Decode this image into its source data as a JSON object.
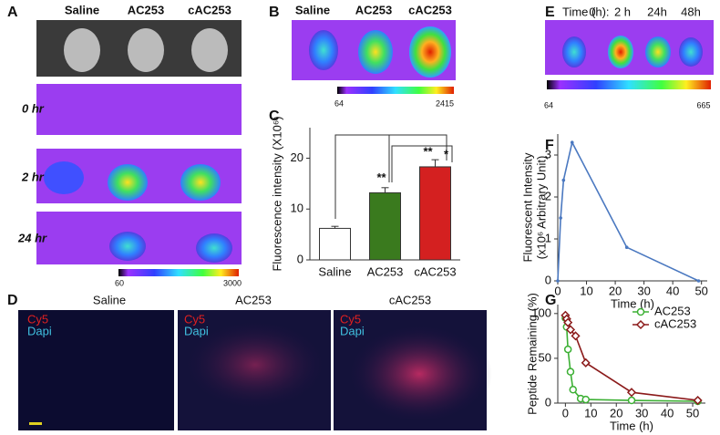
{
  "panels": {
    "A": {
      "label": "A",
      "columns": [
        "Saline",
        "AC253",
        "cAC253"
      ],
      "rows": [
        "0 hr",
        "2 hr",
        "24 hr"
      ],
      "colorbar": [
        "60",
        "3000"
      ]
    },
    "B": {
      "label": "B",
      "columns": [
        "Saline",
        "AC253",
        "cAC253"
      ],
      "colorbar": [
        "64",
        "2415"
      ]
    },
    "E": {
      "label": "E",
      "time_label": "Time (h):",
      "columns": [
        "0",
        "2 h",
        "24h",
        "48h"
      ],
      "colorbar": [
        "64",
        "665"
      ]
    },
    "D": {
      "label": "D",
      "columns": [
        "Saline",
        "AC253",
        "cAC253"
      ],
      "channels": [
        "Cy5",
        "Dapi"
      ]
    }
  },
  "chart_data": [
    {
      "type": "bar",
      "panel_label": "C",
      "ylabel": "Fluorescence intensity (X10⁶)",
      "categories": [
        "Saline",
        "AC253",
        "cAC253"
      ],
      "values": [
        6.2,
        13.2,
        18.3
      ],
      "errors": [
        0.4,
        1.0,
        1.4
      ],
      "colors": [
        "#ffffff",
        "#3a7a1e",
        "#d42020"
      ],
      "ylim": [
        0,
        26
      ],
      "yticks": [
        0,
        10,
        20
      ],
      "annotations": [
        "**",
        "**",
        "*"
      ]
    },
    {
      "type": "line",
      "panel_label": "F",
      "xlabel": "Time (h)",
      "ylabel": [
        "Fluorescent Intensity",
        "(x10⁶ Arbitrary Unit)"
      ],
      "series": [
        {
          "color": "#4a78c0",
          "marker": "dot",
          "x": [
            0,
            1,
            2,
            5,
            24,
            49
          ],
          "values": [
            0,
            1.5,
            2.4,
            3.3,
            0.8,
            0
          ]
        }
      ],
      "xlim": [
        0,
        52
      ],
      "xticks": [
        0,
        10,
        20,
        30,
        40,
        50
      ],
      "ylim": [
        0,
        3.5
      ],
      "yticks": [
        0,
        1,
        2,
        3
      ]
    },
    {
      "type": "line",
      "panel_label": "G",
      "xlabel": "Time (h)",
      "ylabel": "Peptide Remaining (%)",
      "legend": "upper right",
      "series": [
        {
          "name": "AC253",
          "color": "#3cb034",
          "marker": "circle",
          "x": [
            0,
            0.5,
            1,
            2,
            3,
            6,
            8,
            26,
            52
          ],
          "values": [
            95,
            85,
            60,
            35,
            15,
            5,
            4,
            3,
            2
          ]
        },
        {
          "name": "cAC253",
          "color": "#8b1a1a",
          "marker": "diamond",
          "x": [
            0,
            0.5,
            1,
            2,
            4,
            8,
            26,
            52
          ],
          "values": [
            98,
            94,
            90,
            82,
            75,
            45,
            12,
            3
          ]
        }
      ],
      "xlim": [
        -3,
        55
      ],
      "xticks": [
        0,
        10,
        20,
        30,
        40,
        50
      ],
      "ylim": [
        0,
        110
      ],
      "yticks": [
        0,
        50,
        100
      ]
    }
  ]
}
